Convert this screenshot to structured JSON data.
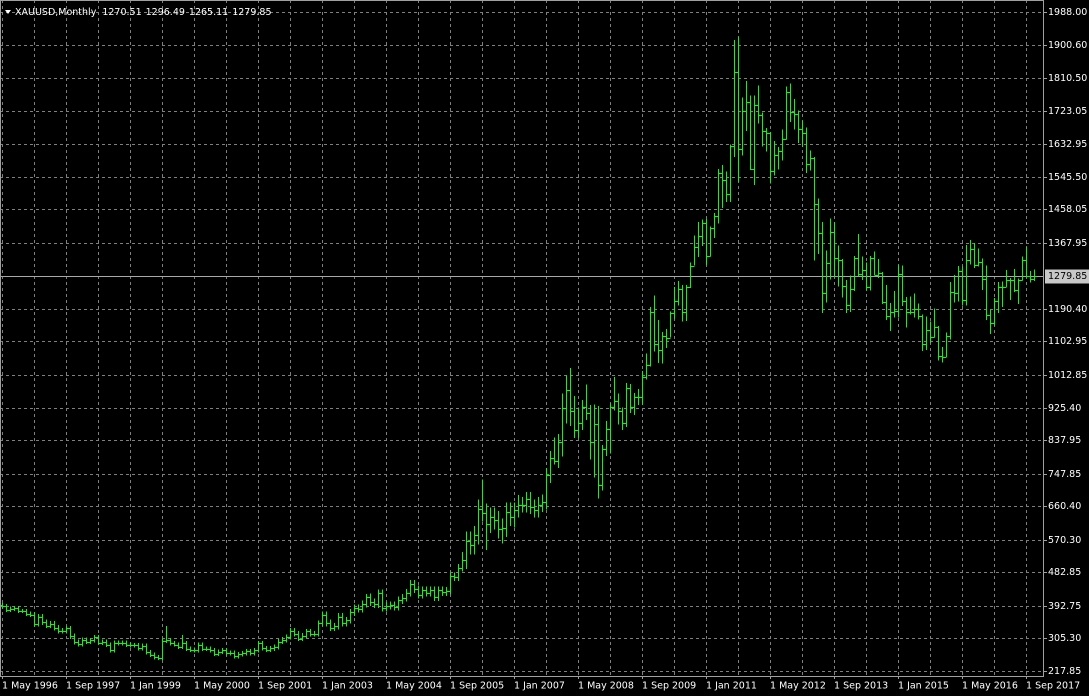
{
  "chart_data": {
    "type": "ohlc",
    "title": "XAUUSD,Monthly",
    "color": "#00ff00",
    "grid": true,
    "ylim": [
      204.4,
      2020.2
    ],
    "yticks": [
      {
        "value": 1988,
        "label": "1988.00"
      },
      {
        "value": 1900.6,
        "label": "1900.60"
      },
      {
        "value": 1810.5,
        "label": "1810.50"
      },
      1723.05,
      1632.95,
      {
        "value": 1545.5,
        "label": "1545.50"
      },
      1458.05,
      1367.95,
      {
        "value": 1190.4,
        "label": "1190.40"
      },
      1102.95,
      1012.85,
      {
        "value": 925.4,
        "label": "925.40"
      },
      837.95,
      747.85,
      {
        "value": 660.4,
        "label": "660.40"
      },
      {
        "value": 570.3,
        "label": "570.30"
      },
      482.85,
      392.75,
      {
        "value": 305.3,
        "label": "305.30"
      },
      217.85
    ],
    "categories": [
      "1 May 1996",
      null,
      null,
      null,
      null,
      null,
      null,
      null,
      null,
      null,
      null,
      null,
      null,
      null,
      null,
      null,
      "1 Sep 1997",
      null,
      null,
      null,
      null,
      null,
      null,
      null,
      null,
      null,
      null,
      null,
      null,
      null,
      null,
      null,
      "1 Jan 1999",
      null,
      null,
      null,
      null,
      null,
      null,
      null,
      null,
      null,
      null,
      null,
      null,
      null,
      null,
      null,
      "1 May 2000",
      null,
      null,
      null,
      null,
      null,
      null,
      null,
      null,
      null,
      null,
      null,
      null,
      null,
      null,
      null,
      "1 Sep 2001",
      null,
      null,
      null,
      null,
      null,
      null,
      null,
      null,
      null,
      null,
      null,
      null,
      null,
      null,
      null,
      "1 Jan 2003",
      null,
      null,
      null,
      null,
      null,
      null,
      null,
      null,
      null,
      null,
      null,
      null,
      null,
      null,
      null,
      "1 May 2004",
      null,
      null,
      null,
      null,
      null,
      null,
      null,
      null,
      null,
      null,
      null,
      null,
      null,
      null,
      null,
      "1 Sep 2005",
      null,
      null,
      null,
      null,
      null,
      null,
      null,
      null,
      null,
      null,
      null,
      null,
      null,
      null,
      null,
      "1 Jan 2007",
      null,
      null,
      null,
      null,
      null,
      null,
      null,
      null,
      null,
      null,
      null,
      null,
      null,
      null,
      null,
      "1 May 2008",
      null,
      null,
      null,
      null,
      null,
      null,
      null,
      null,
      null,
      null,
      null,
      null,
      null,
      null,
      null,
      "1 Sep 2009",
      null,
      null,
      null,
      null,
      null,
      null,
      null,
      null,
      null,
      null,
      null,
      null,
      null,
      null,
      null,
      "1 Jan 2011",
      null,
      null,
      null,
      null,
      null,
      null,
      null,
      null,
      null,
      null,
      null,
      null,
      null,
      null,
      null,
      "1 May 2012",
      null,
      null,
      null,
      null,
      null,
      null,
      null,
      null,
      null,
      null,
      null,
      null,
      null,
      null,
      null,
      "1 Sep 2013",
      null,
      null,
      null,
      null,
      null,
      null,
      null,
      null,
      null,
      null,
      null,
      null,
      null,
      null,
      null,
      "1 Jan 2015",
      null,
      null,
      null,
      null,
      null,
      null,
      null,
      null,
      null,
      null,
      null,
      null,
      null,
      null,
      null,
      "1 May 2016",
      null,
      null,
      null,
      null,
      null,
      null,
      null,
      null,
      null,
      null,
      null,
      null,
      null,
      null,
      null,
      "1 Sep 2017",
      null,
      null
    ],
    "open": [
      395,
      392,
      382,
      385,
      387,
      379,
      379,
      371,
      369,
      345,
      364,
      349,
      340,
      345,
      334,
      326,
      325,
      332,
      311,
      296,
      290,
      302,
      297,
      301,
      309,
      293,
      296,
      288,
      273,
      294,
      292,
      294,
      288,
      287,
      287,
      279,
      286,
      268,
      261,
      255,
      254,
      299,
      300,
      292,
      289,
      283,
      293,
      277,
      275,
      273,
      288,
      277,
      278,
      273,
      264,
      270,
      273,
      265,
      267,
      258,
      263,
      266,
      271,
      266,
      273,
      293,
      279,
      275,
      279,
      282,
      297,
      302,
      309,
      326,
      318,
      305,
      313,
      324,
      317,
      318,
      347,
      368,
      347,
      334,
      338,
      364,
      346,
      354,
      375,
      388,
      384,
      398,
      416,
      402,
      397,
      427,
      388,
      393,
      395,
      391,
      408,
      415,
      428,
      452,
      438,
      422,
      435,
      428,
      435,
      416,
      435,
      429,
      433,
      473,
      470,
      495,
      517,
      568,
      556,
      582,
      654,
      643,
      614,
      632,
      623,
      599,
      603,
      646,
      632,
      650,
      665,
      663,
      679,
      659,
      650,
      665,
      672,
      743,
      789,
      783,
      834,
      923,
      972,
      916,
      864,
      885,
      926,
      912,
      832,
      880,
      718,
      815,
      869,
      927,
      942,
      916,
      883,
      978,
      926,
      954,
      955,
      1007,
      1040,
      1182,
      1096,
      1081,
      1118,
      1113,
      1179,
      1213,
      1244,
      1181,
      1248,
      1307,
      1357,
      1386,
      1421,
      1332,
      1409,
      1439,
      1556,
      1536,
      1500,
      1628,
      1826,
      1620,
      1723,
      1746,
      1565,
      1737,
      1710,
      1668,
      1664,
      1560,
      1604,
      1614,
      1648,
      1773,
      1720,
      1714,
      1675,
      1663,
      1579,
      1595,
      1472,
      1393,
      1234,
      1313,
      1396,
      1328,
      1323,
      1253,
      1202,
      1244,
      1326,
      1284,
      1296,
      1250,
      1327,
      1282,
      1287,
      1210,
      1171,
      1182,
      1184,
      1283,
      1213,
      1183,
      1182,
      1190,
      1172,
      1095,
      1134,
      1115,
      1142,
      1064,
      1061,
      1118,
      1237,
      1233,
      1291,
      1214,
      1322,
      1351,
      1309,
      1316,
      1272,
      1173,
      1152,
      1211,
      1249,
      1249,
      1268,
      1268,
      1242,
      1269,
      1321,
      1280,
      1270.51
    ],
    "high": [
      401,
      398,
      391,
      393,
      393,
      385,
      385,
      377,
      376,
      371,
      371,
      356,
      352,
      352,
      341,
      333,
      339,
      339,
      318,
      303,
      308,
      308,
      307,
      315,
      315,
      302,
      302,
      294,
      300,
      300,
      300,
      300,
      294,
      293,
      293,
      292,
      292,
      274,
      267,
      261,
      305,
      339,
      306,
      298,
      295,
      315,
      299,
      283,
      281,
      294,
      294,
      284,
      284,
      279,
      276,
      279,
      279,
      273,
      273,
      269,
      272,
      277,
      277,
      279,
      299,
      299,
      285,
      285,
      289,
      304,
      309,
      316,
      333,
      333,
      325,
      320,
      331,
      331,
      325,
      354,
      377,
      377,
      356,
      347,
      373,
      373,
      363,
      384,
      397,
      397,
      407,
      425,
      426,
      412,
      437,
      437,
      403,
      405,
      405,
      418,
      425,
      438,
      462,
      462,
      448,
      445,
      445,
      445,
      445,
      445,
      445,
      443,
      483,
      483,
      505,
      537,
      593,
      593,
      607,
      679,
      732,
      668,
      657,
      657,
      648,
      628,
      671,
      671,
      670,
      690,
      685,
      699,
      699,
      679,
      685,
      692,
      763,
      809,
      845,
      854,
      963,
      1012,
      1032,
      956,
      925,
      946,
      988,
      932,
      934,
      930,
      825,
      889,
      937,
      1007,
      963,
      926,
      991,
      989,
      964,
      975,
      1023,
      1070,
      1195,
      1227,
      1161,
      1128,
      1136,
      1184,
      1249,
      1265,
      1254,
      1254,
      1315,
      1388,
      1424,
      1431,
      1432,
      1412,
      1448,
      1566,
      1577,
      1560,
      1632,
      1913,
      1921,
      1758,
      1803,
      1764,
      1764,
      1791,
      1718,
      1677,
      1666,
      1641,
      1625,
      1673,
      1788,
      1796,
      1754,
      1723,
      1696,
      1678,
      1616,
      1598,
      1487,
      1424,
      1347,
      1433,
      1424,
      1361,
      1325,
      1268,
      1280,
      1332,
      1392,
      1331,
      1315,
      1332,
      1345,
      1324,
      1290,
      1255,
      1206,
      1238,
      1308,
      1307,
      1223,
      1224,
      1232,
      1205,
      1175,
      1170,
      1156,
      1191,
      1144,
      1088,
      1127,
      1263,
      1282,
      1306,
      1304,
      1362,
      1375,
      1367,
      1353,
      1326,
      1307,
      1189,
      1220,
      1263,
      1264,
      1295,
      1274,
      1297,
      1272,
      1331,
      1357,
      1292,
      1296.49
    ],
    "low": [
      386,
      376,
      376,
      379,
      373,
      373,
      365,
      363,
      338,
      338,
      342,
      333,
      333,
      327,
      319,
      318,
      318,
      304,
      289,
      283,
      284,
      291,
      291,
      295,
      287,
      287,
      282,
      267,
      267,
      286,
      286,
      282,
      281,
      281,
      273,
      273,
      262,
      255,
      249,
      248,
      248,
      293,
      286,
      283,
      277,
      277,
      271,
      269,
      267,
      267,
      271,
      271,
      267,
      258,
      258,
      264,
      259,
      259,
      252,
      252,
      257,
      260,
      260,
      260,
      267,
      273,
      269,
      269,
      272,
      275,
      290,
      295,
      302,
      311,
      298,
      298,
      306,
      310,
      310,
      311,
      338,
      338,
      325,
      325,
      329,
      337,
      337,
      345,
      366,
      375,
      375,
      389,
      392,
      387,
      387,
      378,
      378,
      383,
      381,
      381,
      398,
      405,
      418,
      428,
      412,
      412,
      418,
      418,
      406,
      406,
      419,
      419,
      423,
      460,
      460,
      485,
      492,
      531,
      531,
      557,
      620,
      543,
      589,
      598,
      574,
      560,
      578,
      607,
      603,
      630,
      643,
      643,
      639,
      630,
      630,
      645,
      652,
      723,
      773,
      763,
      794,
      883,
      876,
      844,
      844,
      865,
      892,
      786,
      738,
      681,
      703,
      795,
      802,
      917,
      880,
      865,
      873,
      911,
      905,
      932,
      933,
      1001,
      1036,
      1076,
      1045,
      1044,
      1086,
      1113,
      1163,
      1200,
      1157,
      1158,
      1246,
      1307,
      1330,
      1360,
      1309,
      1331,
      1381,
      1420,
      1462,
      1477,
      1478,
      1598,
      1532,
      1603,
      1668,
      1563,
      1523,
      1689,
      1627,
      1613,
      1527,
      1549,
      1565,
      1589,
      1646,
      1692,
      1673,
      1636,
      1626,
      1555,
      1562,
      1321,
      1338,
      1180,
      1207,
      1270,
      1275,
      1251,
      1221,
      1179,
      1182,
      1238,
      1277,
      1268,
      1240,
      1240,
      1281,
      1273,
      1204,
      1161,
      1131,
      1168,
      1167,
      1198,
      1141,
      1175,
      1168,
      1162,
      1077,
      1080,
      1099,
      1113,
      1052,
      1046,
      1061,
      1108,
      1208,
      1211,
      1200,
      1199,
      1310,
      1300,
      1305,
      1241,
      1161,
      1123,
      1146,
      1180,
      1195,
      1249,
      1214,
      1236,
      1204,
      1267,
      1275,
      1261,
      1265.11
    ],
    "close": [
      392,
      382,
      385,
      387,
      379,
      379,
      371,
      369,
      345,
      364,
      349,
      340,
      345,
      334,
      326,
      325,
      332,
      311,
      296,
      290,
      302,
      297,
      301,
      309,
      293,
      296,
      288,
      273,
      294,
      292,
      294,
      288,
      287,
      287,
      279,
      286,
      268,
      261,
      255,
      254,
      299,
      300,
      292,
      289,
      283,
      293,
      277,
      275,
      273,
      288,
      277,
      278,
      273,
      264,
      270,
      273,
      265,
      267,
      258,
      263,
      266,
      271,
      266,
      273,
      293,
      279,
      275,
      279,
      282,
      297,
      302,
      309,
      326,
      318,
      305,
      313,
      324,
      317,
      318,
      347,
      368,
      347,
      334,
      338,
      364,
      346,
      354,
      375,
      388,
      384,
      398,
      416,
      402,
      397,
      427,
      388,
      393,
      395,
      391,
      408,
      415,
      428,
      452,
      438,
      422,
      435,
      428,
      435,
      416,
      435,
      429,
      433,
      473,
      470,
      495,
      517,
      568,
      556,
      582,
      654,
      643,
      614,
      632,
      623,
      599,
      603,
      646,
      632,
      650,
      665,
      663,
      679,
      659,
      650,
      665,
      672,
      743,
      789,
      783,
      834,
      923,
      972,
      916,
      864,
      885,
      926,
      912,
      832,
      880,
      718,
      815,
      869,
      927,
      942,
      916,
      883,
      978,
      926,
      954,
      955,
      1007,
      1040,
      1182,
      1096,
      1081,
      1118,
      1113,
      1179,
      1213,
      1244,
      1181,
      1248,
      1307,
      1357,
      1386,
      1421,
      1332,
      1409,
      1439,
      1556,
      1536,
      1500,
      1628,
      1826,
      1620,
      1723,
      1746,
      1565,
      1737,
      1710,
      1668,
      1664,
      1560,
      1604,
      1614,
      1648,
      1773,
      1720,
      1714,
      1675,
      1663,
      1579,
      1595,
      1472,
      1393,
      1234,
      1313,
      1396,
      1328,
      1323,
      1253,
      1202,
      1244,
      1326,
      1284,
      1296,
      1250,
      1327,
      1282,
      1287,
      1210,
      1171,
      1182,
      1184,
      1283,
      1213,
      1183,
      1182,
      1190,
      1172,
      1095,
      1134,
      1115,
      1142,
      1064,
      1061,
      1118,
      1237,
      1233,
      1291,
      1214,
      1322,
      1351,
      1309,
      1316,
      1272,
      1173,
      1152,
      1211,
      1249,
      1249,
      1268,
      1268,
      1242,
      1269,
      1321,
      1280,
      1271,
      1279.85
    ]
  }
}
